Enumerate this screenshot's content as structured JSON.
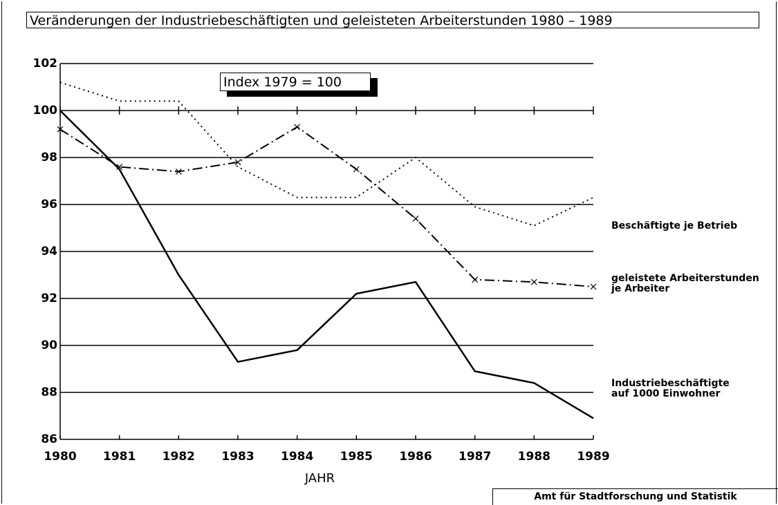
{
  "chart_data": {
    "type": "line",
    "title": "Veränderungen der Industriebeschäftigten und geleisteten Arbeiterstunden 1980 – 1989",
    "annotation": "Index 1979 = 100",
    "xlabel": "JAHR",
    "source": "Amt für Stadtforschung und Statistik",
    "x": [
      1980,
      1981,
      1982,
      1983,
      1984,
      1985,
      1986,
      1987,
      1988,
      1989
    ],
    "xlim": [
      1980,
      1989
    ],
    "xticks": [
      1980,
      1981,
      1982,
      1983,
      1984,
      1985,
      1986,
      1987,
      1988,
      1989
    ],
    "ylim": [
      86,
      102
    ],
    "yticks": [
      86,
      88,
      90,
      92,
      94,
      96,
      98,
      100,
      102
    ],
    "grid": true,
    "series": [
      {
        "name": "Beschäftigte je Betrieb",
        "color": "#000000",
        "linestyle": "dotted",
        "values": [
          101.2,
          100.4,
          100.4,
          97.6,
          96.3,
          96.3,
          98.0,
          95.9,
          95.1,
          96.3
        ]
      },
      {
        "name": "geleistete Arbeiterstunden\nje Arbeiter",
        "color": "#000000",
        "linestyle": "dashdot",
        "marker": "x",
        "values": [
          99.2,
          97.6,
          97.4,
          97.8,
          99.3,
          97.5,
          95.4,
          92.8,
          92.7,
          92.5
        ]
      },
      {
        "name": "Industriebeschäftigte\nauf 1000 Einwohner",
        "color": "#000000",
        "linestyle": "solid",
        "values": [
          100,
          97.5,
          93.0,
          89.3,
          89.8,
          92.2,
          92.7,
          88.9,
          88.4,
          86.9
        ]
      }
    ]
  }
}
